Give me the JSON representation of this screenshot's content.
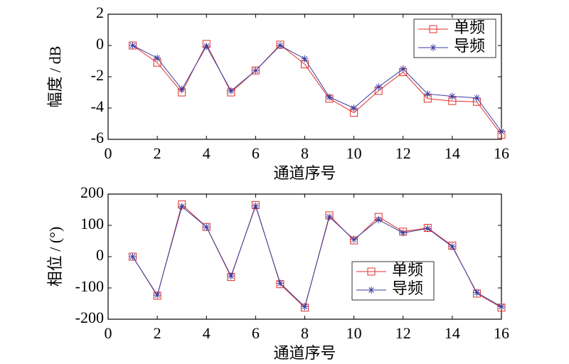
{
  "chart_data": [
    {
      "type": "line",
      "ylabel": "幅度 / dB",
      "xlabel": "通道序号",
      "x": [
        1,
        2,
        3,
        4,
        5,
        6,
        7,
        8,
        9,
        10,
        11,
        12,
        13,
        14,
        15,
        16
      ],
      "xlim": [
        0,
        16
      ],
      "xticks": [
        0,
        2,
        4,
        6,
        8,
        10,
        12,
        14,
        16
      ],
      "ylim": [
        -6,
        2
      ],
      "yticks": [
        2,
        0,
        -2,
        -4,
        -6
      ],
      "legend": "upper right",
      "series": [
        {
          "name": "单频",
          "color": "#e0302a",
          "marker": "square",
          "values": [
            0,
            -1.1,
            -3,
            0.1,
            -3,
            -1.6,
            0.05,
            -1.2,
            -3.4,
            -4.3,
            -2.9,
            -1.7,
            -3.4,
            -3.55,
            -3.6,
            -5.7
          ]
        },
        {
          "name": "导频",
          "color": "#3a3aa0",
          "marker": "star",
          "values": [
            0,
            -0.8,
            -2.8,
            -0.05,
            -2.9,
            -1.6,
            0,
            -0.85,
            -3.3,
            -4,
            -2.65,
            -1.5,
            -3.1,
            -3.25,
            -3.35,
            -5.5
          ]
        }
      ]
    },
    {
      "type": "line",
      "ylabel": "相位 / (°)",
      "xlabel": "通道序号",
      "x": [
        1,
        2,
        3,
        4,
        5,
        6,
        7,
        8,
        9,
        10,
        11,
        12,
        13,
        14,
        15,
        16
      ],
      "xlim": [
        0,
        16
      ],
      "xticks": [
        0,
        2,
        4,
        6,
        8,
        10,
        12,
        14,
        16
      ],
      "ylim": [
        -200,
        200
      ],
      "yticks": [
        200,
        100,
        0,
        -100,
        -200
      ],
      "legend": "lower right",
      "series": [
        {
          "name": "单频",
          "color": "#e0302a",
          "marker": "square",
          "values": [
            0,
            -125,
            167,
            95,
            -65,
            165,
            -88,
            -163,
            132,
            52,
            127,
            80,
            92,
            35,
            -118,
            -163
          ]
        },
        {
          "name": "导频",
          "color": "#3a3aa0",
          "marker": "star",
          "values": [
            0,
            -123,
            160,
            95,
            -62,
            162,
            -85,
            -160,
            127,
            55,
            118,
            76,
            90,
            32,
            -115,
            -160
          ]
        }
      ]
    }
  ]
}
